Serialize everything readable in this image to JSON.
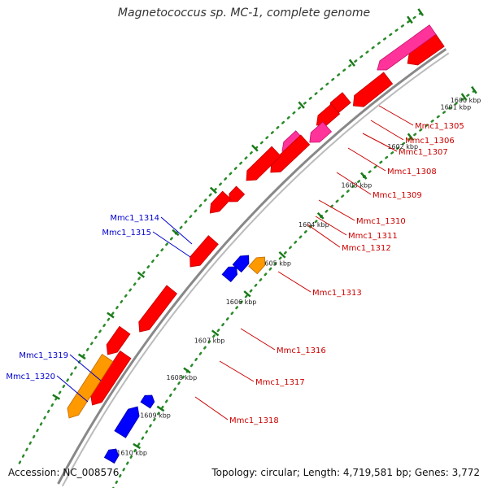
{
  "title": "Magnetococcus sp. MC-1, complete genome",
  "accession_text": "Accession: NC_008576",
  "summary_text": "Topology: circular; Length: 4,719,581 bp; Genes: 3,772",
  "colors": {
    "forward_gene": "#ff0000",
    "forward_gene_dark": "#c40000",
    "alt_gene": "#ff3399",
    "alt_gene_dark": "#c4106e",
    "reverse_gene": "#0000ff",
    "reverse_gene_dark": "#0000a8",
    "other_gene": "#ff9900",
    "other_gene_dark": "#c06a00",
    "forward_label": "#cc0000",
    "reverse_label": "#0000cc",
    "backbone": "#888888",
    "tick_dots": "#2a8a2a"
  },
  "ticks": [
    {
      "label": "1600 kbp"
    },
    {
      "label": "1601 kbp"
    },
    {
      "label": "1602 kbp"
    },
    {
      "label": "1603 kbp"
    },
    {
      "label": "1604 kbp"
    },
    {
      "label": "1605 kbp"
    },
    {
      "label": "1606 kbp"
    },
    {
      "label": "1607 kbp"
    },
    {
      "label": "1608 kbp"
    },
    {
      "label": "1609 kbp"
    },
    {
      "label": "1610 kbp"
    }
  ],
  "genes": [
    {
      "id": "Mmc1_1305",
      "strand": "forward",
      "color": "forward"
    },
    {
      "id": "Mmc1_1306",
      "strand": "forward",
      "color": "alt"
    },
    {
      "id": "Mmc1_1307",
      "strand": "forward",
      "color": "forward"
    },
    {
      "id": "Mmc1_1308",
      "strand": "forward",
      "color": "forward"
    },
    {
      "id": "Mmc1_1309",
      "strand": "forward",
      "color": "alt"
    },
    {
      "id": "Mmc1_1310",
      "strand": "forward",
      "color": "forward"
    },
    {
      "id": "Mmc1_1311",
      "strand": "forward",
      "color": "forward"
    },
    {
      "id": "Mmc1_1312",
      "strand": "forward",
      "color": "forward"
    },
    {
      "id": "Mmc1_1313",
      "strand": "forward",
      "color": "forward"
    },
    {
      "id": "Mmc1_1314",
      "strand": "reverse",
      "color": "reverse"
    },
    {
      "id": "Mmc1_1315",
      "strand": "reverse",
      "color": "other"
    },
    {
      "id": "Mmc1_1316",
      "strand": "forward",
      "color": "forward"
    },
    {
      "id": "Mmc1_1317",
      "strand": "forward",
      "color": "forward"
    },
    {
      "id": "Mmc1_1318",
      "strand": "forward",
      "color": "other"
    },
    {
      "id": "Mmc1_1319",
      "strand": "reverse",
      "color": "reverse"
    },
    {
      "id": "Mmc1_1320",
      "strand": "reverse",
      "color": "reverse"
    }
  ]
}
